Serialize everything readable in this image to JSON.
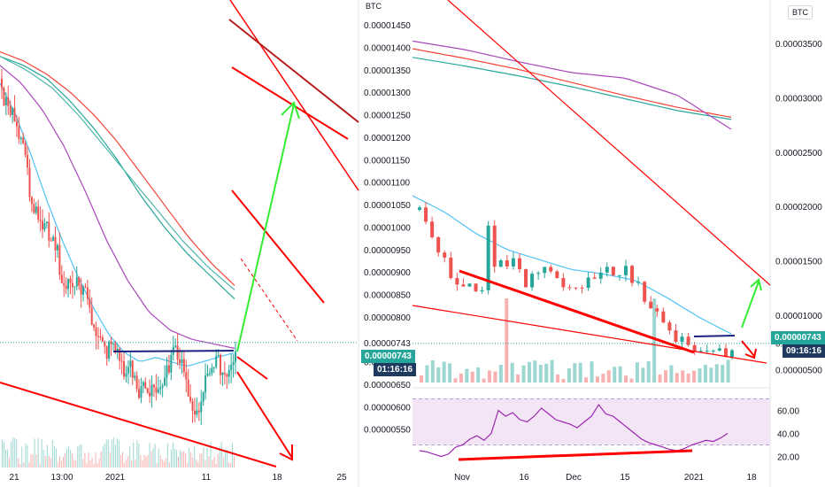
{
  "colors": {
    "candle_up": "#26a69a",
    "candle_down": "#ef5350",
    "ma_red": "#f44336",
    "ma_green": "#26a69a",
    "ma_teal": "#4db6ac",
    "ma_purple": "#ab47bc",
    "ma_cyan": "#4fc3f7",
    "trend_red": "#ff0000",
    "trend_darkred": "#b71c1c",
    "arrow_green": "#33ee33",
    "neckline": "#1a237e",
    "rsi_fill": "#f3e5f5",
    "rsi_line": "#9c27b0"
  },
  "left": {
    "currency": "BTC",
    "price_badge": "0.00000743",
    "countdown_badge": "01:16:16"
  },
  "right": {
    "currency": "BTC",
    "price_badge": "0.00000743",
    "countdown_badge": "09:16:16"
  },
  "chart_data": [
    {
      "type": "line",
      "subtype": "candlestick",
      "quote": "BTC",
      "x_tick_labels": [
        "21",
        "13:00",
        "2021",
        "11",
        "18",
        "25"
      ],
      "y_tick_labels": [
        "0.00001450",
        "0.00001400",
        "0.00001350",
        "0.00001300",
        "0.00001250",
        "0.00001200",
        "0.00001150",
        "0.00001100",
        "0.00001050",
        "0.00001000",
        "0.00000950",
        "0.00000900",
        "0.00000850",
        "0.00000800",
        "0.00000743",
        "0.00000700",
        "0.00000650",
        "0.00000600",
        "0.00000550"
      ],
      "ylim": [
        5.1e-06,
        1.47e-05
      ],
      "last_price": 7.43e-06,
      "countdown": "01:16:16",
      "close_path": [
        1.33e-05,
        1.29e-05,
        1.22e-05,
        1.15e-05,
        1.08e-05,
        1.02e-05,
        9.8e-06,
        9.4e-06,
        9.1e-06,
        8.9e-06,
        8.6e-06,
        8.3e-06,
        8e-06,
        7.6e-06,
        7.2e-06,
        7.1e-06,
        7.3e-06,
        6.6e-06,
        6.2e-06,
        6.5e-06,
        7e-06,
        7.3e-06,
        7.1e-06,
        6.6e-06,
        6.1e-06,
        6.4e-06,
        7e-06,
        7.1e-06,
        7.2e-06,
        7.4e-06
      ],
      "moving_averages": [
        {
          "color": "ma_red",
          "values": [
            1.39e-05,
            1.37e-05,
            1.34e-05,
            1.3e-05,
            1.25e-05,
            1.19e-05,
            1.12e-05,
            1.05e-05,
            9.8e-06,
            9.2e-06,
            8.7e-06
          ]
        },
        {
          "color": "ma_green",
          "values": [
            1.38e-05,
            1.36e-05,
            1.33e-05,
            1.28e-05,
            1.22e-05,
            1.15e-05,
            1.07e-05,
            1e-05,
            9.4e-06,
            8.9e-06,
            8.4e-06
          ]
        },
        {
          "color": "ma_teal",
          "values": [
            1.38e-05,
            1.35e-05,
            1.31e-05,
            1.25e-05,
            1.18e-05,
            1.11e-05,
            1.04e-05,
            9.7e-06,
            9.1e-06,
            8.6e-06
          ]
        },
        {
          "color": "ma_purple",
          "values": [
            1.36e-05,
            1.32e-05,
            1.26e-05,
            1.18e-05,
            1.08e-05,
            9.7e-06,
            8.8e-06,
            8.1e-06,
            7.7e-06,
            7.5e-06,
            7.4e-06,
            7.3e-06
          ]
        },
        {
          "color": "ma_cyan",
          "values": [
            1.32e-05,
            1.25e-05,
            1.16e-05,
            1.06e-05,
            9.7e-06,
            8.9e-06,
            8.2e-06,
            7.6e-06,
            7.2e-06,
            7e-06,
            7.1e-06,
            7e-06,
            6.9e-06,
            7e-06,
            7.1e-06,
            7.2e-06
          ]
        }
      ],
      "annotations": [
        "neckline",
        "breakout arrow up",
        "breakdown arrow down",
        "descending trendlines"
      ]
    },
    {
      "type": "line",
      "subtype": "candlestick",
      "quote": "BTC",
      "x_tick_labels": [
        "Nov",
        "16",
        "Dec",
        "15",
        "2021",
        "18"
      ],
      "y_tick_labels": [
        "0.00003500",
        "0.00003000",
        "0.00002500",
        "0.00002000",
        "0.00001500",
        "0.00001000",
        "0.00000743",
        "0.00000500"
      ],
      "ylim": [
        3.5e-06,
        3.8e-05
      ],
      "last_price": 7.43e-06,
      "countdown": "09:16:16",
      "close_path": [
        1.97e-05,
        1.85e-05,
        1.73e-05,
        1.6e-05,
        1.5e-05,
        1.4e-05,
        1.33e-05,
        1.31e-05,
        1.33e-05,
        1.29e-05,
        1.3e-05,
        1.86e-05,
        1.45e-05,
        1.5e-05,
        1.48e-05,
        1.5e-05,
        1.39e-05,
        1.25e-05,
        1.35e-05,
        1.44e-05,
        1.48e-05,
        1.45e-05,
        1.4e-05,
        1.35e-05,
        1.3e-05,
        1.32e-05,
        1.3e-05,
        1.34e-05,
        1.31e-05,
        1.37e-05,
        1.42e-05,
        1.4e-05,
        1.38e-05,
        1.42e-05,
        1.39e-05,
        1.35e-05,
        1.2e-05,
        1.15e-05,
        1.1e-05,
        1.02e-05,
        9.3e-06,
        8.5e-06,
        7.8e-06,
        7e-06,
        6.8e-06,
        7e-06,
        6.5e-06,
        6.8e-06,
        7.1e-06,
        7.2e-06,
        7.4e-06
      ],
      "moving_averages": [
        {
          "color": "ma_red",
          "values": [
            3.45e-05,
            3.36e-05,
            3.26e-05,
            3.14e-05,
            3.02e-05,
            2.91e-05,
            2.82e-05
          ]
        },
        {
          "color": "ma_green",
          "values": [
            3.37e-05,
            3.29e-05,
            3.2e-05,
            3.1e-05,
            2.99e-05,
            2.88e-05,
            2.8e-05
          ]
        },
        {
          "color": "ma_purple",
          "values": [
            3.52e-05,
            3.44e-05,
            3.33e-05,
            3.23e-05,
            3.18e-05,
            3.02e-05,
            2.71e-05
          ]
        },
        {
          "color": "ma_cyan",
          "values": [
            2.1e-05,
            1.95e-05,
            1.75e-05,
            1.6e-05,
            1.51e-05,
            1.42e-05,
            1.38e-05,
            1.32e-05,
            1.16e-05,
            9.8e-06,
            8.3e-06
          ]
        }
      ],
      "rsi": {
        "ylim": [
          15,
          75
        ],
        "y_tick_labels": [
          "60.00",
          "40.00",
          "20.00"
        ],
        "bands": [
          70,
          30
        ],
        "values": [
          25,
          24,
          22,
          20,
          22,
          28,
          30,
          35,
          38,
          34,
          40,
          60,
          55,
          58,
          52,
          50,
          55,
          62,
          57,
          52,
          50,
          48,
          45,
          50,
          55,
          65,
          57,
          55,
          50,
          45,
          40,
          35,
          32,
          30,
          28,
          26,
          25,
          27,
          30,
          32,
          34,
          33,
          36,
          40
        ]
      },
      "annotations": [
        "falling wedge lower trendline",
        "RSI bullish divergence",
        "target arrow up",
        "target arrow down"
      ]
    }
  ]
}
